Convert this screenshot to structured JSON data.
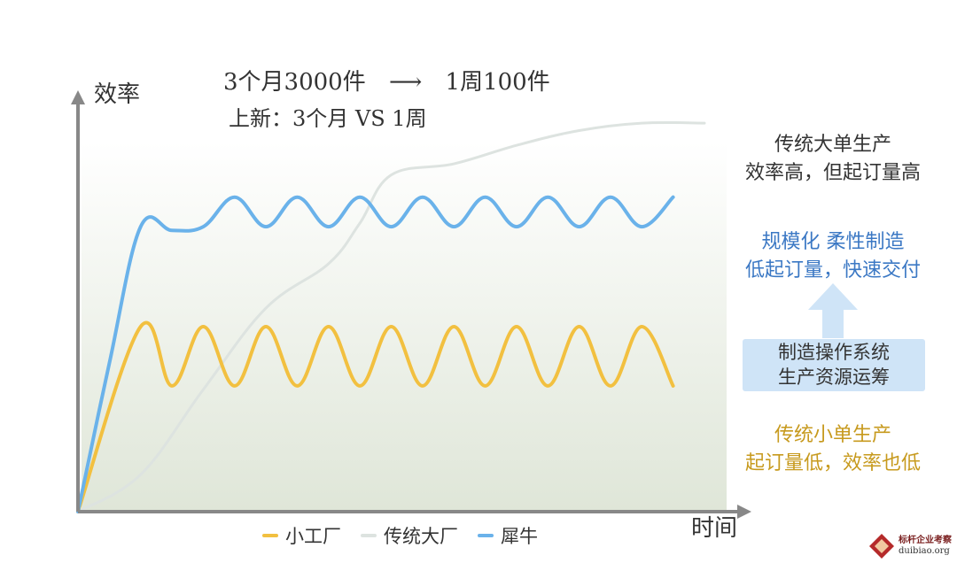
{
  "headline": {
    "line1_left": "3个月3000件",
    "line1_right": "1周100件",
    "line2": "上新：3个月 VS 1周"
  },
  "annotations": {
    "big_factory": [
      "传统大单生产",
      "效率高，但起订量高"
    ],
    "flexible": [
      "规模化 柔性制造",
      "低起订量，快速交付"
    ],
    "os_box": [
      "制造操作系统",
      "生产资源运筹"
    ],
    "small_factory": [
      "传统小单生产",
      "起订量低，效率也低"
    ]
  },
  "watermark": {
    "line1": "标杆企业考察",
    "line2": "duibiao.org"
  },
  "colors": {
    "small": "#f2c040",
    "big": "#dde3e0",
    "xiniu": "#6ab2ea",
    "axis": "#888888"
  },
  "chart_data": {
    "type": "line",
    "xlabel": "时间",
    "ylabel": "效率",
    "legend_position": "bottom",
    "grid": false,
    "x_range": [
      0,
      100
    ],
    "y_range": [
      0,
      100
    ],
    "series": [
      {
        "name": "小工厂",
        "x": [
          0,
          10,
          15,
          20,
          25,
          30,
          35,
          40,
          45,
          50,
          55,
          60,
          65,
          70,
          75,
          80,
          85,
          90,
          95
        ],
        "y": [
          0,
          50,
          34,
          50,
          34,
          50,
          34,
          50,
          34,
          50,
          34,
          50,
          34,
          50,
          34,
          50,
          34,
          50,
          34
        ]
      },
      {
        "name": "传统大厂",
        "x": [
          0,
          10,
          20,
          30,
          40,
          45,
          50,
          60,
          70,
          80,
          90,
          100
        ],
        "y": [
          0,
          10,
          33,
          55,
          67,
          78,
          91,
          94,
          99,
          103,
          105,
          105
        ]
      },
      {
        "name": "犀牛",
        "x": [
          0,
          5,
          10,
          15,
          20,
          25,
          30,
          35,
          40,
          45,
          50,
          55,
          60,
          65,
          70,
          75,
          80,
          85,
          90,
          95
        ],
        "y": [
          0,
          40,
          77,
          76,
          77,
          85,
          77,
          85,
          77,
          85,
          77,
          85,
          77,
          85,
          77,
          85,
          77,
          85,
          77,
          85
        ]
      }
    ]
  }
}
